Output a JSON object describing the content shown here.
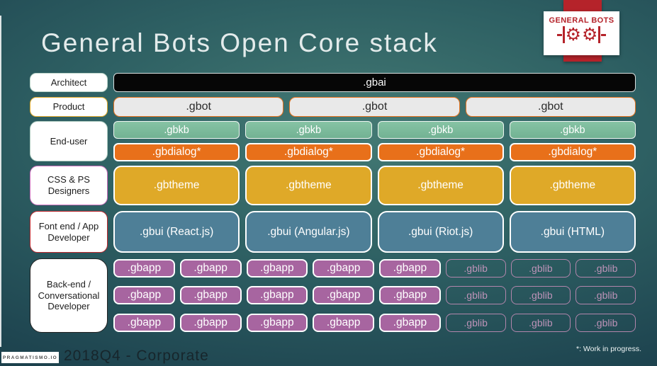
{
  "slide": {
    "title": "General Bots Open Core stack",
    "footer": {
      "badge": "PRAGMATISMO.IO",
      "caption": "2018Q4 - Corporate",
      "note": "*: Work in progress."
    }
  },
  "logo": {
    "text": "GENERAL BOTS",
    "color": "#b5232a",
    "gear_glyph": "⚙"
  },
  "labels": [
    {
      "text": "Architect",
      "border": "#bdd6ca"
    },
    {
      "text": "Product",
      "border": "#e2aa2b"
    },
    {
      "text": "End-user",
      "border": "#aecabf"
    },
    {
      "text": "CSS & PS Designers",
      "border": "#ca6cbb"
    },
    {
      "text": "Font end / App Developer",
      "border": "#c0272d"
    },
    {
      "text": "Back-end / Conversational Developer",
      "border": "#222222"
    }
  ],
  "stack": {
    "gbai": ".gbai",
    "gbot": [
      ".gbot",
      ".gbot",
      ".gbot"
    ],
    "gbkb": [
      ".gbkb",
      ".gbkb",
      ".gbkb",
      ".gbkb"
    ],
    "gbdialog": [
      ".gbdialog*",
      ".gbdialog*",
      ".gbdialog*",
      ".gbdialog*"
    ],
    "gbtheme": [
      ".gbtheme",
      ".gbtheme",
      ".gbtheme",
      ".gbtheme"
    ],
    "gbui": [
      ".gbui (React.js)",
      ".gbui (Angular.js)",
      ".gbui (Riot.js)",
      ".gbui (HTML)"
    ],
    "backend_rows": [
      {
        "gbapp": [
          ".gbapp",
          ".gbapp",
          ".gbapp",
          ".gbapp",
          ".gbapp"
        ],
        "gblib": [
          ".gblib",
          ".gblib",
          ".gblib"
        ]
      },
      {
        "gbapp": [
          ".gbapp",
          ".gbapp",
          ".gbapp",
          ".gbapp",
          ".gbapp"
        ],
        "gblib": [
          ".gblib",
          ".gblib",
          ".gblib"
        ]
      },
      {
        "gbapp": [
          ".gbapp",
          ".gbapp",
          ".gbapp",
          ".gbapp",
          ".gbapp"
        ],
        "gblib": [
          ".gblib",
          ".gblib",
          ".gblib"
        ]
      }
    ]
  },
  "colors": {
    "background_center": "#447a74",
    "background_edge": "#142f3b",
    "gbai_fill": "#060606",
    "gbot_fill": "#e9e9e9",
    "gbot_border": "#e8731e",
    "gbkb_fill": "#7cbc9e",
    "gbdialog_fill": "#e8701a",
    "gbtheme_fill": "#dfa928",
    "gbui_fill": "#4e7f97",
    "gbapp_fill": "#a765a0",
    "gblib_border": "#b286ac",
    "logo_red": "#b5232a"
  }
}
